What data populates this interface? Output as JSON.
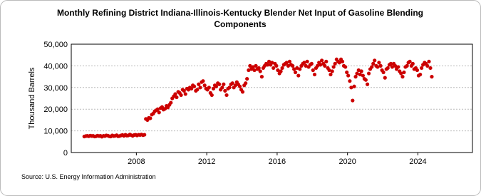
{
  "chart_data": {
    "type": "scatter",
    "title": [
      "Monthly Refining District Indiana-Illinois-Kentucky Blender Net Input of Gasoline Blending",
      "Components"
    ],
    "y_label": "Thousand Barrels",
    "source": "Source: U.S. Energy Information Administration",
    "color": "#cc0000",
    "grid": true,
    "xlim": [
      2004.3,
      2027.1
    ],
    "xticks": [
      2008,
      2012,
      2016,
      2020,
      2024
    ],
    "ylim": [
      0,
      50000
    ],
    "yticks": [
      0,
      {
        "value": 10000,
        "label": "10,000"
      },
      {
        "value": 20000,
        "label": "20,000"
      },
      {
        "value": 30000,
        "label": "30,000"
      },
      {
        "value": 40000,
        "label": "40,000"
      },
      {
        "value": 50000,
        "label": "50,000"
      }
    ],
    "x": [
      2005.04,
      2005.13,
      2005.21,
      2005.29,
      2005.38,
      2005.46,
      2005.54,
      2005.63,
      2005.71,
      2005.79,
      2005.88,
      2005.96,
      2006.04,
      2006.13,
      2006.21,
      2006.29,
      2006.38,
      2006.46,
      2006.54,
      2006.63,
      2006.71,
      2006.79,
      2006.88,
      2006.96,
      2007.04,
      2007.13,
      2007.21,
      2007.29,
      2007.38,
      2007.46,
      2007.54,
      2007.63,
      2007.71,
      2007.79,
      2007.88,
      2007.96,
      2008.04,
      2008.13,
      2008.21,
      2008.29,
      2008.38,
      2008.46,
      2008.54,
      2008.63,
      2008.71,
      2008.79,
      2008.88,
      2008.96,
      2009.04,
      2009.13,
      2009.21,
      2009.29,
      2009.38,
      2009.46,
      2009.54,
      2009.63,
      2009.71,
      2009.79,
      2009.88,
      2009.96,
      2010.04,
      2010.13,
      2010.21,
      2010.29,
      2010.38,
      2010.46,
      2010.54,
      2010.63,
      2010.71,
      2010.79,
      2010.88,
      2010.96,
      2011.04,
      2011.13,
      2011.21,
      2011.29,
      2011.38,
      2011.46,
      2011.54,
      2011.63,
      2011.71,
      2011.79,
      2011.88,
      2011.96,
      2012.04,
      2012.13,
      2012.21,
      2012.29,
      2012.38,
      2012.46,
      2012.54,
      2012.63,
      2012.71,
      2012.79,
      2012.88,
      2012.96,
      2013.04,
      2013.13,
      2013.21,
      2013.29,
      2013.38,
      2013.46,
      2013.54,
      2013.63,
      2013.71,
      2013.79,
      2013.88,
      2013.96,
      2014.04,
      2014.13,
      2014.21,
      2014.29,
      2014.38,
      2014.46,
      2014.54,
      2014.63,
      2014.71,
      2014.79,
      2014.88,
      2014.96,
      2015.04,
      2015.13,
      2015.21,
      2015.29,
      2015.38,
      2015.46,
      2015.54,
      2015.63,
      2015.71,
      2015.79,
      2015.88,
      2015.96,
      2016.04,
      2016.13,
      2016.21,
      2016.29,
      2016.38,
      2016.46,
      2016.54,
      2016.63,
      2016.71,
      2016.79,
      2016.88,
      2016.96,
      2017.04,
      2017.13,
      2017.21,
      2017.29,
      2017.38,
      2017.46,
      2017.54,
      2017.63,
      2017.71,
      2017.79,
      2017.88,
      2017.96,
      2018.04,
      2018.13,
      2018.21,
      2018.29,
      2018.38,
      2018.46,
      2018.54,
      2018.63,
      2018.71,
      2018.79,
      2018.88,
      2018.96,
      2019.04,
      2019.13,
      2019.21,
      2019.29,
      2019.38,
      2019.46,
      2019.54,
      2019.63,
      2019.71,
      2019.79,
      2019.88,
      2019.96,
      2020.04,
      2020.13,
      2020.21,
      2020.29,
      2020.38,
      2020.46,
      2020.54,
      2020.63,
      2020.71,
      2020.79,
      2020.88,
      2020.96,
      2021.04,
      2021.13,
      2021.21,
      2021.29,
      2021.38,
      2021.46,
      2021.54,
      2021.63,
      2021.71,
      2021.79,
      2021.88,
      2021.96,
      2022.04,
      2022.13,
      2022.21,
      2022.29,
      2022.38,
      2022.46,
      2022.54,
      2022.63,
      2022.71,
      2022.79,
      2022.88,
      2022.96,
      2023.04,
      2023.13,
      2023.21,
      2023.29,
      2023.38,
      2023.46,
      2023.54,
      2023.63,
      2023.71,
      2023.79,
      2023.88,
      2023.96,
      2024.04,
      2024.13,
      2024.21,
      2024.29,
      2024.38,
      2024.46,
      2024.54,
      2024.63,
      2024.71,
      2024.79
    ],
    "values": [
      7400,
      7600,
      7700,
      7500,
      7800,
      7600,
      7700,
      7400,
      7500,
      7800,
      7600,
      7700,
      7300,
      7700,
      7600,
      7900,
      7800,
      7500,
      7400,
      7900,
      7600,
      7700,
      8000,
      7500,
      7600,
      7900,
      8100,
      7700,
      8200,
      7800,
      7900,
      8300,
      8000,
      7700,
      8100,
      8200,
      7900,
      8200,
      8100,
      8300,
      8000,
      8200,
      15500,
      15000,
      16000,
      15800,
      17500,
      18000,
      19000,
      19500,
      20000,
      18500,
      20500,
      21000,
      19800,
      20200,
      21500,
      20800,
      22000,
      23000,
      25000,
      26000,
      27000,
      25500,
      28000,
      27500,
      26500,
      29000,
      28500,
      27000,
      29500,
      29000,
      30000,
      29500,
      31000,
      30500,
      28500,
      29000,
      31500,
      30000,
      32500,
      33000,
      31000,
      29500,
      29000,
      30000,
      27500,
      26500,
      29500,
      31000,
      30500,
      32000,
      31500,
      29000,
      30000,
      31500,
      28500,
      26500,
      29500,
      30000,
      31500,
      32000,
      30000,
      31000,
      32500,
      31500,
      30500,
      29000,
      28000,
      31000,
      32000,
      34000,
      38000,
      40000,
      38500,
      39500,
      38000,
      40000,
      38500,
      39000,
      37500,
      35000,
      39000,
      40000,
      41000,
      40500,
      42000,
      40500,
      41500,
      39000,
      41000,
      40000,
      38000,
      36500,
      37500,
      39000,
      40500,
      41000,
      41500,
      40000,
      42000,
      40500,
      40000,
      38500,
      37000,
      39000,
      35500,
      38500,
      40000,
      41000,
      41500,
      40000,
      42000,
      39500,
      40500,
      41000,
      38000,
      36000,
      39000,
      40000,
      41500,
      40500,
      42500,
      41000,
      40000,
      42000,
      39000,
      38000,
      36000,
      37500,
      39500,
      41000,
      43000,
      42000,
      41500,
      43000,
      42000,
      40000,
      39500,
      37000,
      35500,
      33000,
      30000,
      24000,
      30500,
      35000,
      36500,
      38000,
      36000,
      37500,
      35500,
      34000,
      33500,
      31500,
      36500,
      38500,
      39500,
      41000,
      42500,
      40000,
      39500,
      41500,
      40000,
      38000,
      37000,
      34500,
      38500,
      39000,
      40500,
      41000,
      39500,
      41000,
      40000,
      38500,
      39500,
      37500,
      36500,
      35000,
      37000,
      39500,
      40000,
      41500,
      42000,
      40000,
      41000,
      38500,
      39000,
      38000,
      35500,
      36000,
      39000,
      40500,
      41500,
      41000,
      40000,
      42000,
      39000,
      35000
    ]
  }
}
